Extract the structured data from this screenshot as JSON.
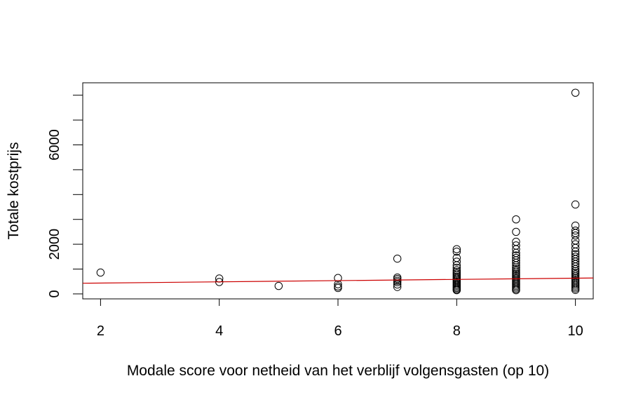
{
  "chart_data": {
    "type": "scatter",
    "title": "",
    "xlabel": "Modale score voor netheid van het verblijf volgensgasten (op 10)",
    "ylabel": "Totale kostprijs",
    "xlim": [
      1.7,
      10.3
    ],
    "ylim": [
      -200,
      8500
    ],
    "x_ticks": [
      2,
      4,
      6,
      8,
      10
    ],
    "x_tick_labels": [
      "2",
      "4",
      "6",
      "8",
      "10"
    ],
    "y_ticks": [
      0,
      1000,
      2000,
      3000,
      4000,
      5000,
      6000,
      7000,
      8000
    ],
    "y_tick_labels": [
      "0",
      "",
      "2000",
      "",
      "",
      "",
      "6000",
      "",
      ""
    ],
    "grid": false,
    "legend": "none",
    "point_style": "open-circle",
    "colors": {
      "points": "#000000",
      "regression_line": "#cc0000"
    },
    "points": [
      {
        "x": 2,
        "y": 860
      },
      {
        "x": 4,
        "y": 620
      },
      {
        "x": 4,
        "y": 480
      },
      {
        "x": 5,
        "y": 320
      },
      {
        "x": 6,
        "y": 640
      },
      {
        "x": 6,
        "y": 390
      },
      {
        "x": 6,
        "y": 300
      },
      {
        "x": 6,
        "y": 240
      },
      {
        "x": 7,
        "y": 1420
      },
      {
        "x": 7,
        "y": 660
      },
      {
        "x": 7,
        "y": 600
      },
      {
        "x": 7,
        "y": 530
      },
      {
        "x": 7,
        "y": 470
      },
      {
        "x": 7,
        "y": 380
      },
      {
        "x": 7,
        "y": 280
      },
      {
        "x": 8,
        "y": 1800
      },
      {
        "x": 8,
        "y": 1700
      },
      {
        "x": 8,
        "y": 1450
      },
      {
        "x": 8,
        "y": 1300
      },
      {
        "x": 8,
        "y": 1150
      },
      {
        "x": 8,
        "y": 1050
      },
      {
        "x": 8,
        "y": 950
      },
      {
        "x": 8,
        "y": 880
      },
      {
        "x": 8,
        "y": 820
      },
      {
        "x": 8,
        "y": 760
      },
      {
        "x": 8,
        "y": 700
      },
      {
        "x": 8,
        "y": 640
      },
      {
        "x": 8,
        "y": 590
      },
      {
        "x": 8,
        "y": 540
      },
      {
        "x": 8,
        "y": 490
      },
      {
        "x": 8,
        "y": 440
      },
      {
        "x": 8,
        "y": 390
      },
      {
        "x": 8,
        "y": 340
      },
      {
        "x": 8,
        "y": 290
      },
      {
        "x": 8,
        "y": 240
      },
      {
        "x": 8,
        "y": 190
      },
      {
        "x": 8,
        "y": 150
      },
      {
        "x": 9,
        "y": 3000
      },
      {
        "x": 9,
        "y": 2500
      },
      {
        "x": 9,
        "y": 2100
      },
      {
        "x": 9,
        "y": 1950
      },
      {
        "x": 9,
        "y": 1800
      },
      {
        "x": 9,
        "y": 1650
      },
      {
        "x": 9,
        "y": 1550
      },
      {
        "x": 9,
        "y": 1450
      },
      {
        "x": 9,
        "y": 1350
      },
      {
        "x": 9,
        "y": 1250
      },
      {
        "x": 9,
        "y": 1150
      },
      {
        "x": 9,
        "y": 1070
      },
      {
        "x": 9,
        "y": 1000
      },
      {
        "x": 9,
        "y": 930
      },
      {
        "x": 9,
        "y": 860
      },
      {
        "x": 9,
        "y": 800
      },
      {
        "x": 9,
        "y": 740
      },
      {
        "x": 9,
        "y": 680
      },
      {
        "x": 9,
        "y": 620
      },
      {
        "x": 9,
        "y": 560
      },
      {
        "x": 9,
        "y": 500
      },
      {
        "x": 9,
        "y": 440
      },
      {
        "x": 9,
        "y": 380
      },
      {
        "x": 9,
        "y": 320
      },
      {
        "x": 9,
        "y": 260
      },
      {
        "x": 9,
        "y": 200
      },
      {
        "x": 9,
        "y": 150
      },
      {
        "x": 10,
        "y": 8100
      },
      {
        "x": 10,
        "y": 3600
      },
      {
        "x": 10,
        "y": 2750
      },
      {
        "x": 10,
        "y": 2550
      },
      {
        "x": 10,
        "y": 2450
      },
      {
        "x": 10,
        "y": 2350
      },
      {
        "x": 10,
        "y": 2150
      },
      {
        "x": 10,
        "y": 2000
      },
      {
        "x": 10,
        "y": 1850
      },
      {
        "x": 10,
        "y": 1700
      },
      {
        "x": 10,
        "y": 1600
      },
      {
        "x": 10,
        "y": 1500
      },
      {
        "x": 10,
        "y": 1400
      },
      {
        "x": 10,
        "y": 1300
      },
      {
        "x": 10,
        "y": 1200
      },
      {
        "x": 10,
        "y": 1100
      },
      {
        "x": 10,
        "y": 1000
      },
      {
        "x": 10,
        "y": 920
      },
      {
        "x": 10,
        "y": 850
      },
      {
        "x": 10,
        "y": 780
      },
      {
        "x": 10,
        "y": 710
      },
      {
        "x": 10,
        "y": 640
      },
      {
        "x": 10,
        "y": 580
      },
      {
        "x": 10,
        "y": 520
      },
      {
        "x": 10,
        "y": 460
      },
      {
        "x": 10,
        "y": 400
      },
      {
        "x": 10,
        "y": 340
      },
      {
        "x": 10,
        "y": 280
      },
      {
        "x": 10,
        "y": 220
      },
      {
        "x": 10,
        "y": 160
      }
    ],
    "regression_line": {
      "x": [
        1.7,
        10.3
      ],
      "y": [
        430,
        640
      ]
    }
  }
}
